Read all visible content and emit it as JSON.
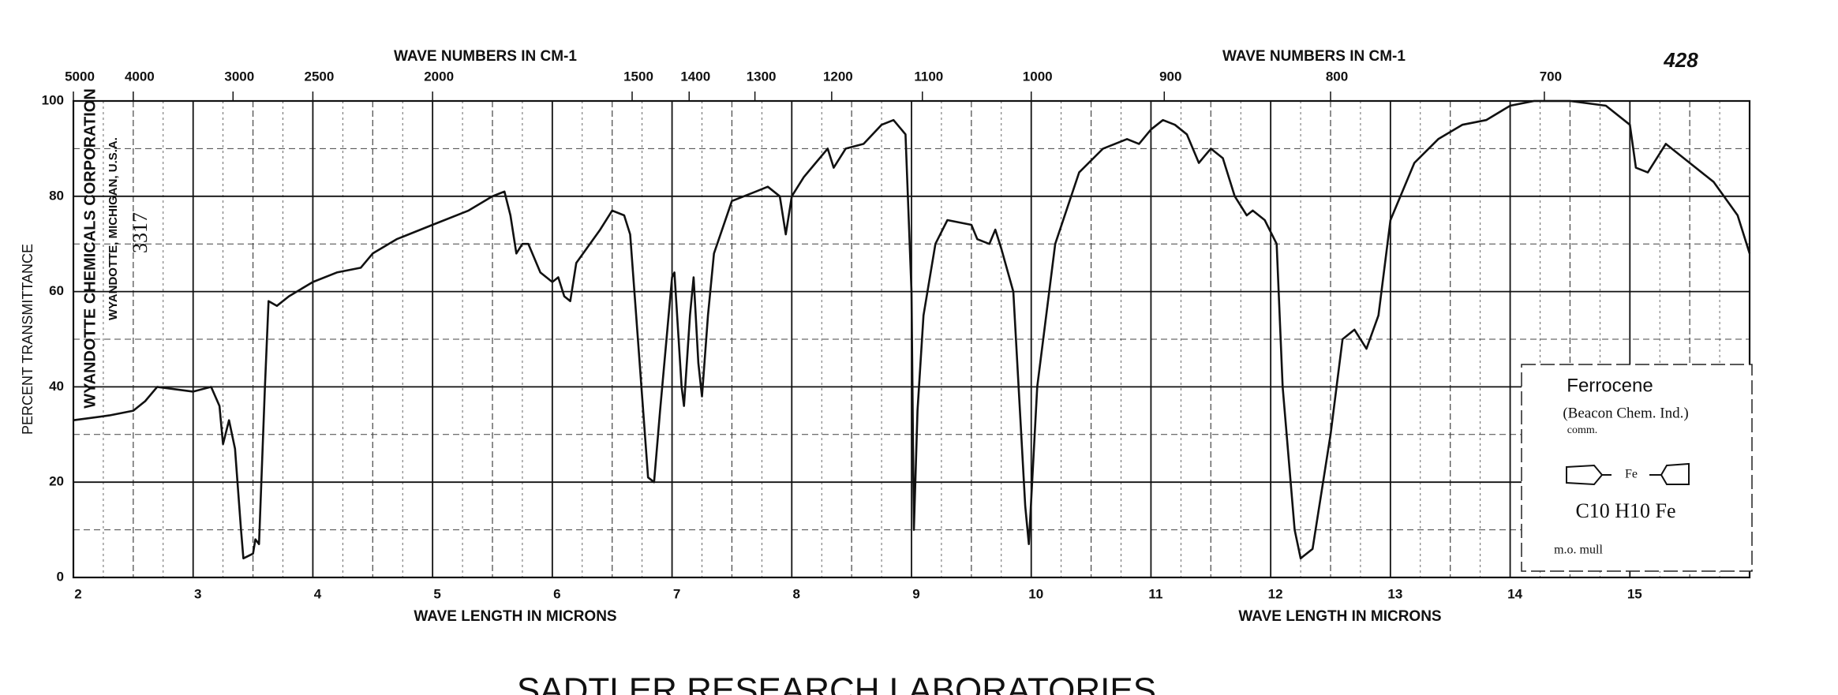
{
  "chart_data": {
    "type": "line",
    "x_label": "WAVE LENGTH IN MICRONS",
    "x2_label": "WAVE NUMBERS IN CM-1",
    "y_label": "PERCENT TRANSMITTANCE",
    "color": "#111111",
    "grid": true,
    "xlim": [
      2,
      16
    ],
    "xticks": [
      2,
      3,
      4,
      5,
      6,
      7,
      8,
      9,
      10,
      11,
      12,
      13,
      14,
      15
    ],
    "x2ticks": [
      5000,
      4000,
      3000,
      2500,
      2000,
      1500,
      1400,
      1300,
      1200,
      1100,
      1000,
      900,
      800,
      700
    ],
    "ylim": [
      0,
      100
    ],
    "yticks": [
      0,
      20,
      40,
      60,
      80,
      100
    ],
    "x": [
      2.0,
      2.3,
      2.5,
      2.6,
      2.7,
      3.0,
      3.15,
      3.22,
      3.25,
      3.3,
      3.35,
      3.4,
      3.42,
      3.5,
      3.52,
      3.55,
      3.6,
      3.63,
      3.7,
      3.8,
      4.0,
      4.2,
      4.4,
      4.5,
      4.7,
      5.0,
      5.3,
      5.5,
      5.6,
      5.65,
      5.7,
      5.75,
      5.8,
      5.9,
      6.0,
      6.05,
      6.1,
      6.15,
      6.2,
      6.4,
      6.5,
      6.6,
      6.65,
      6.7,
      6.8,
      6.85,
      6.9,
      7.0,
      7.02,
      7.08,
      7.1,
      7.15,
      7.18,
      7.22,
      7.25,
      7.3,
      7.35,
      7.5,
      7.7,
      7.8,
      7.9,
      7.95,
      8.0,
      8.1,
      8.2,
      8.3,
      8.35,
      8.45,
      8.6,
      8.75,
      8.85,
      8.95,
      9.0,
      9.02,
      9.05,
      9.1,
      9.2,
      9.3,
      9.5,
      9.55,
      9.65,
      9.7,
      9.75,
      9.85,
      9.95,
      9.98,
      10.05,
      10.2,
      10.4,
      10.6,
      10.8,
      10.9,
      11.0,
      11.1,
      11.2,
      11.3,
      11.4,
      11.5,
      11.6,
      11.7,
      11.8,
      11.85,
      11.95,
      12.05,
      12.1,
      12.2,
      12.25,
      12.35,
      12.5,
      12.6,
      12.7,
      12.8,
      12.9,
      13.0,
      13.2,
      13.4,
      13.6,
      13.8,
      14.0,
      14.2,
      14.5,
      14.8,
      15.0,
      15.05,
      15.15,
      15.3,
      15.5,
      15.7,
      15.9,
      16.0
    ],
    "values": [
      33,
      34,
      35,
      37,
      40,
      39,
      40,
      36,
      28,
      33,
      27,
      10,
      4,
      5,
      8,
      7,
      40,
      58,
      57,
      59,
      62,
      64,
      65,
      68,
      71,
      74,
      77,
      80,
      81,
      76,
      68,
      70,
      70,
      64,
      62,
      63,
      59,
      58,
      66,
      73,
      77,
      76,
      72,
      55,
      21,
      20,
      35,
      63,
      64,
      40,
      36,
      55,
      63,
      45,
      38,
      55,
      68,
      79,
      81,
      82,
      80,
      72,
      80,
      84,
      87,
      90,
      86,
      90,
      91,
      95,
      96,
      93,
      60,
      10,
      35,
      55,
      70,
      75,
      74,
      71,
      70,
      73,
      69,
      60,
      15,
      7,
      40,
      70,
      85,
      90,
      92,
      91,
      94,
      96,
      95,
      93,
      87,
      90,
      88,
      80,
      76,
      77,
      75,
      70,
      40,
      10,
      4,
      6,
      30,
      50,
      52,
      48,
      55,
      75,
      87,
      92,
      95,
      96,
      99,
      100,
      100,
      99,
      95,
      86,
      85,
      91,
      87,
      83,
      76,
      68
    ],
    "annotations": [
      "WYANDOTTE CHEMICALS CORPORATION",
      "WYANDOTTE, MICHIGAN, U.S.A.",
      "3317",
      "428",
      "Ferrocene",
      "(Beacon Chem. Ind.)",
      "comm.",
      "C10 H10 Fe",
      "m.o. mull"
    ],
    "footer": "SADTLER RESEARCH LABORATORIES"
  }
}
